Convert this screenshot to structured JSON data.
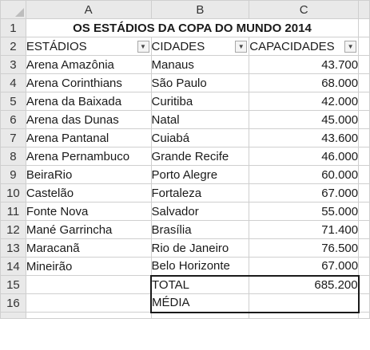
{
  "columns": [
    "A",
    "B",
    "C"
  ],
  "title": "OS ESTÁDIOS DA COPA DO MUNDO 2014",
  "headers": {
    "stadiums": "ESTÁDIOS",
    "cities": "CIDADES",
    "capacities": "CAPACIDADES",
    "dropdown_glyph": "▼"
  },
  "row_numbers": [
    "1",
    "2",
    "3",
    "4",
    "5",
    "6",
    "7",
    "8",
    "9",
    "10",
    "11",
    "12",
    "13",
    "14",
    "15",
    "16"
  ],
  "rows": [
    {
      "stadium": "Arena Amazônia",
      "city": "Manaus",
      "capacity": "43.700"
    },
    {
      "stadium": "Arena Corinthians",
      "city": "São Paulo",
      "capacity": "68.000"
    },
    {
      "stadium": "Arena da Baixada",
      "city": "Curitiba",
      "capacity": "42.000"
    },
    {
      "stadium": "Arena das Dunas",
      "city": "Natal",
      "capacity": "45.000"
    },
    {
      "stadium": "Arena Pantanal",
      "city": "Cuiabá",
      "capacity": "43.600"
    },
    {
      "stadium": "Arena Pernambuco",
      "city": "Grande Recife",
      "capacity": "46.000"
    },
    {
      "stadium": "BeiraRio",
      "city": "Porto Alegre",
      "capacity": "60.000"
    },
    {
      "stadium": "Castelão",
      "city": "Fortaleza",
      "capacity": "67.000"
    },
    {
      "stadium": "Fonte Nova",
      "city": "Salvador",
      "capacity": "55.000"
    },
    {
      "stadium": "Mané Garrincha",
      "city": "Brasília",
      "capacity": "71.400"
    },
    {
      "stadium": "Maracanã",
      "city": "Rio de Janeiro",
      "capacity": "76.500"
    },
    {
      "stadium": "Mineirão",
      "city": "Belo Horizonte",
      "capacity": "67.000"
    }
  ],
  "summary": {
    "total_label": "TOTAL",
    "total_value": "685.200",
    "average_label": "MÉDIA",
    "average_value": ""
  }
}
